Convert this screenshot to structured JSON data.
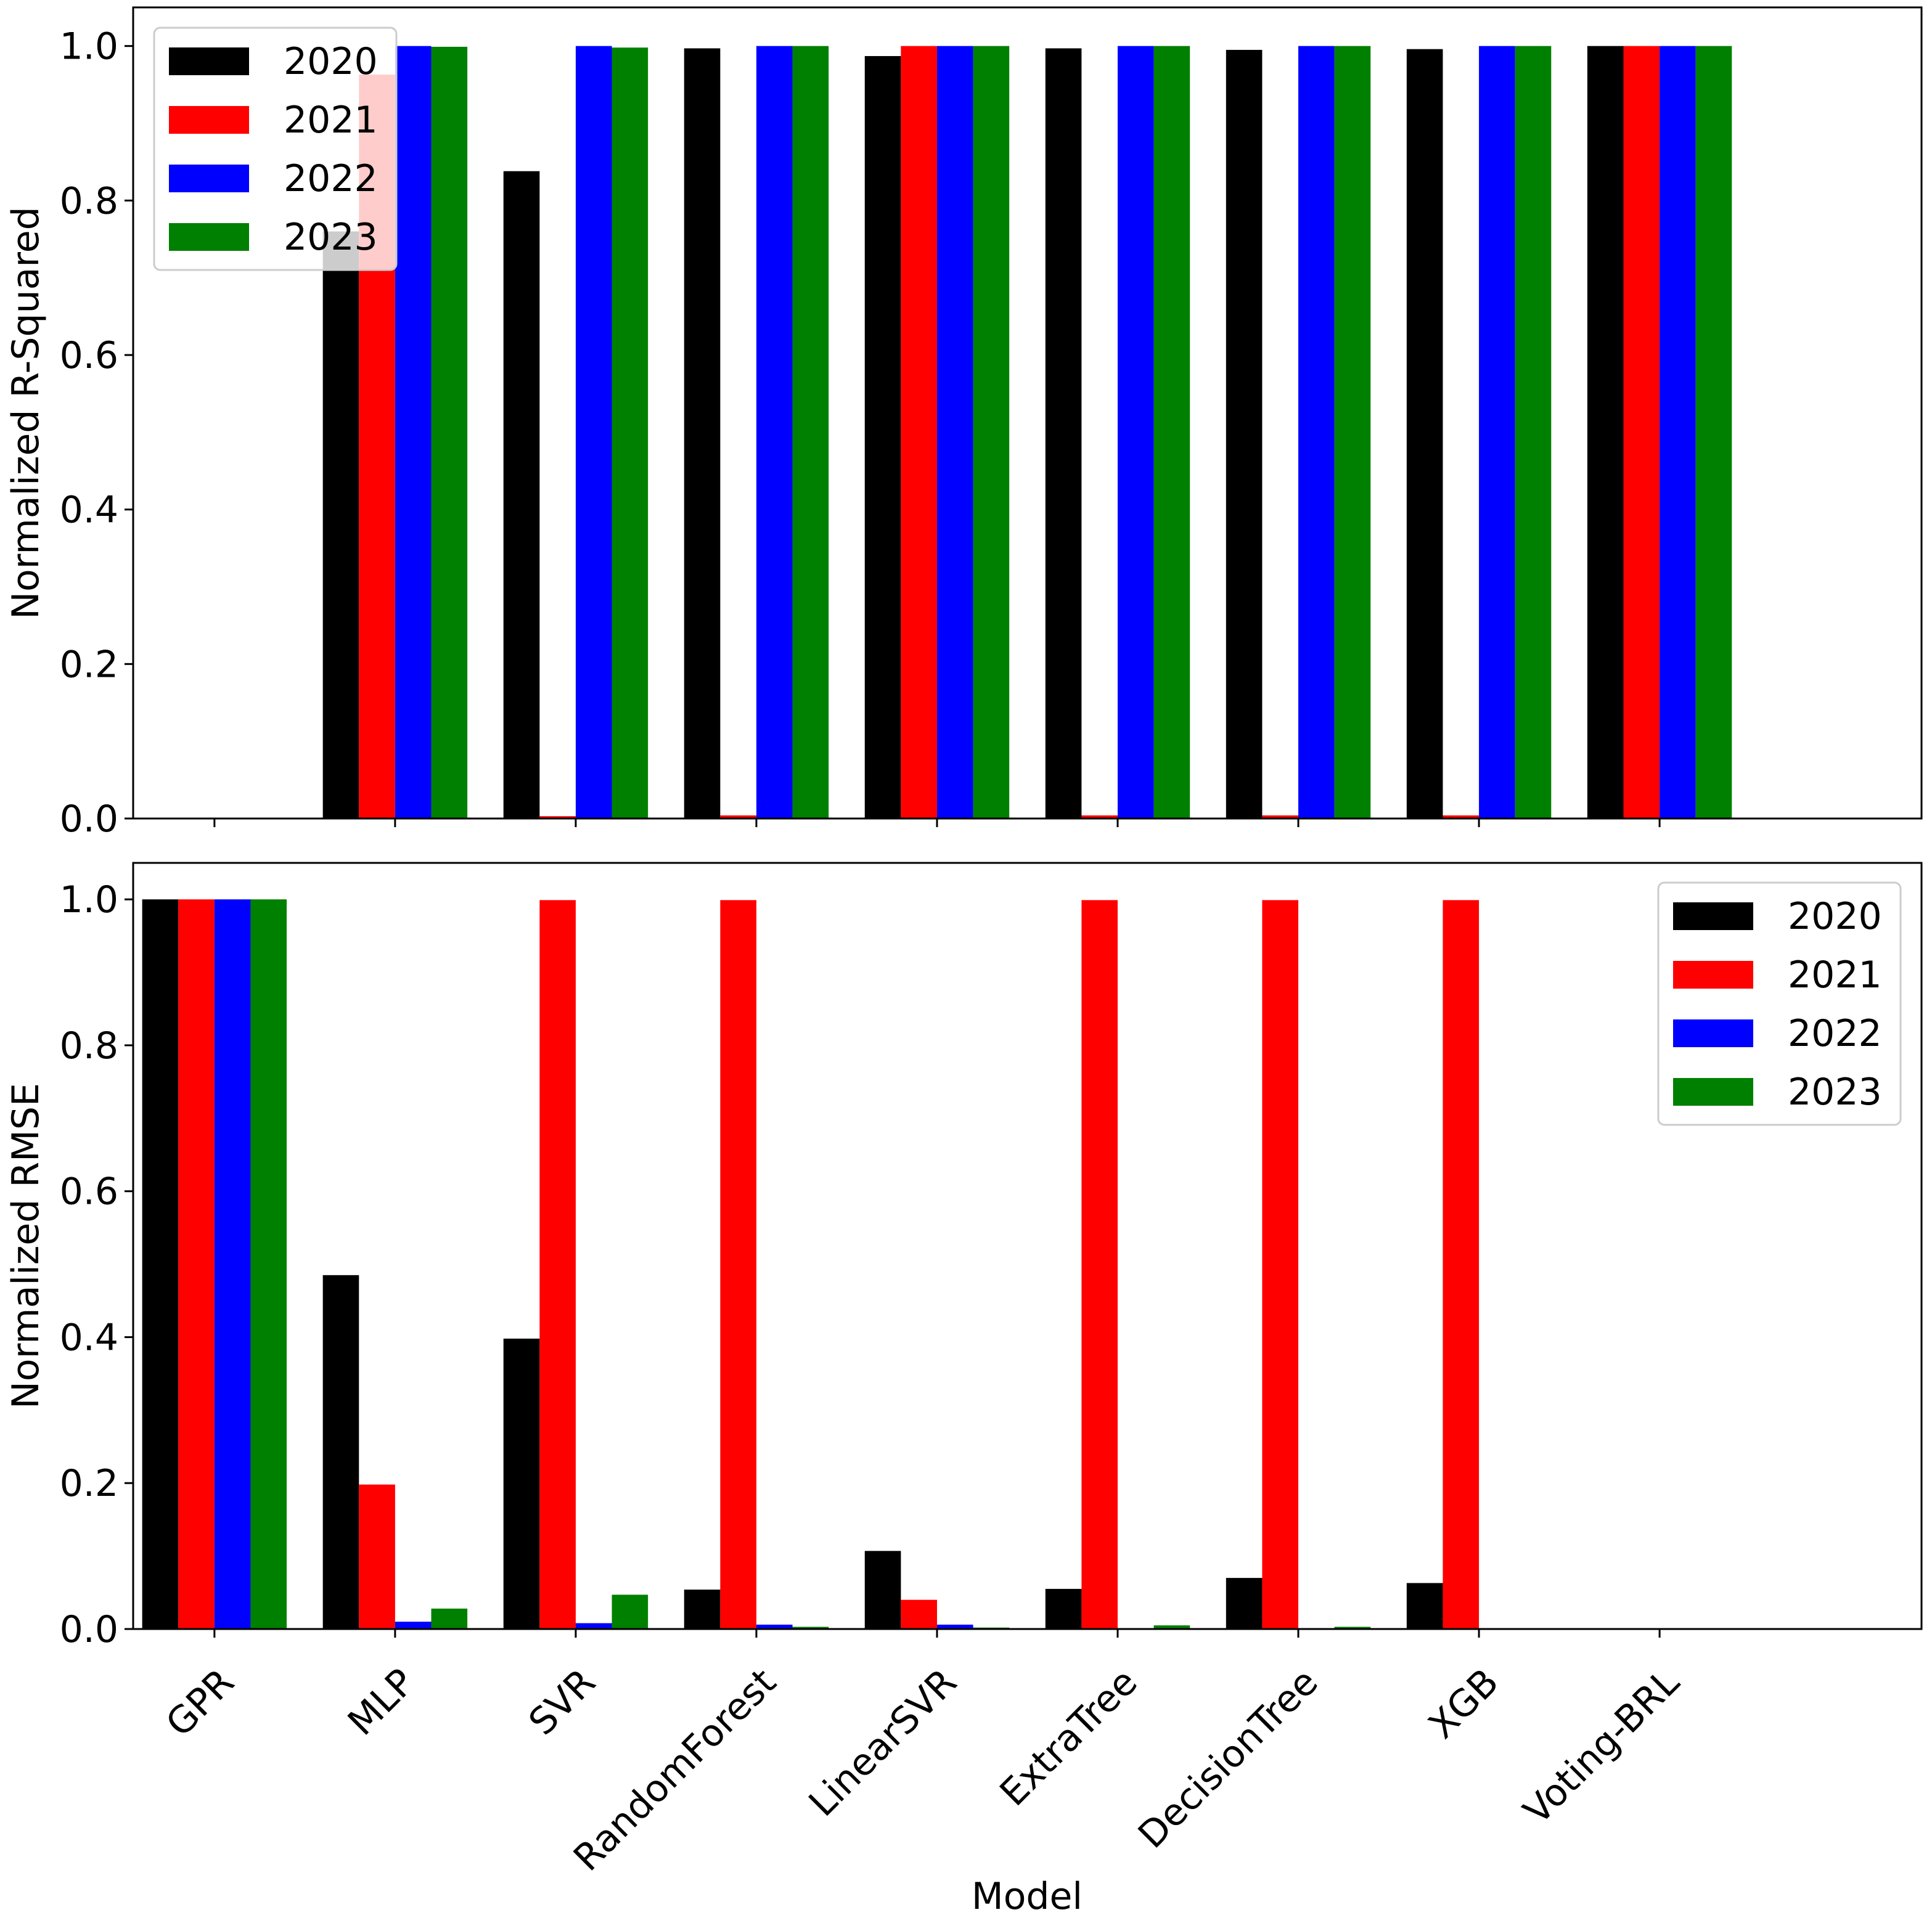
{
  "chart_data": [
    {
      "type": "bar",
      "categories": [
        "GPR",
        "MLP",
        "SVR",
        "RandomForest",
        "LinearSVR",
        "ExtraTree",
        "DecisionTree",
        "XGB",
        "Voting-BRL"
      ],
      "series": [
        {
          "name": "2020",
          "color": "#000000",
          "values": [
            0.0,
            0.76,
            0.838,
            0.997,
            0.987,
            0.997,
            0.995,
            0.996,
            1.0
          ]
        },
        {
          "name": "2021",
          "color": "#ff0000",
          "values": [
            0.0,
            0.963,
            0.003,
            0.004,
            1.0,
            0.004,
            0.004,
            0.004,
            1.0
          ]
        },
        {
          "name": "2022",
          "color": "#0000ff",
          "values": [
            0.0,
            1.0,
            1.0,
            1.0,
            1.0,
            1.0,
            1.0,
            1.0,
            1.0
          ]
        },
        {
          "name": "2023",
          "color": "#008000",
          "values": [
            0.0,
            0.999,
            0.998,
            1.0,
            1.0,
            1.0,
            1.0,
            1.0,
            1.0
          ]
        }
      ],
      "title": "",
      "xlabel": "",
      "ylabel": "Normalized R-Squared",
      "ylim": [
        0,
        1.05
      ],
      "yticks": [
        "0.0",
        "0.2",
        "0.4",
        "0.6",
        "0.8",
        "1.0"
      ],
      "legend": "upper left",
      "grid": false
    },
    {
      "type": "bar",
      "categories": [
        "GPR",
        "MLP",
        "SVR",
        "RandomForest",
        "LinearSVR",
        "ExtraTree",
        "DecisionTree",
        "XGB",
        "Voting-BRL"
      ],
      "series": [
        {
          "name": "2020",
          "color": "#000000",
          "values": [
            1.0,
            0.485,
            0.398,
            0.054,
            0.107,
            0.055,
            0.07,
            0.063,
            0.0
          ]
        },
        {
          "name": "2021",
          "color": "#ff0000",
          "values": [
            1.0,
            0.198,
            0.999,
            0.999,
            0.04,
            0.999,
            0.999,
            0.999,
            0.0
          ]
        },
        {
          "name": "2022",
          "color": "#0000ff",
          "values": [
            1.0,
            0.01,
            0.008,
            0.006,
            0.006,
            0.001,
            0.001,
            0.001,
            0.0
          ]
        },
        {
          "name": "2023",
          "color": "#008000",
          "values": [
            1.0,
            0.028,
            0.047,
            0.003,
            0.002,
            0.005,
            0.003,
            0.001,
            0.0
          ]
        }
      ],
      "title": "",
      "xlabel": "Model",
      "ylabel": "Normalized RMSE",
      "ylim": [
        0,
        1.05
      ],
      "yticks": [
        "0.0",
        "0.2",
        "0.4",
        "0.6",
        "0.8",
        "1.0"
      ],
      "legend": "upper right",
      "grid": false
    }
  ]
}
